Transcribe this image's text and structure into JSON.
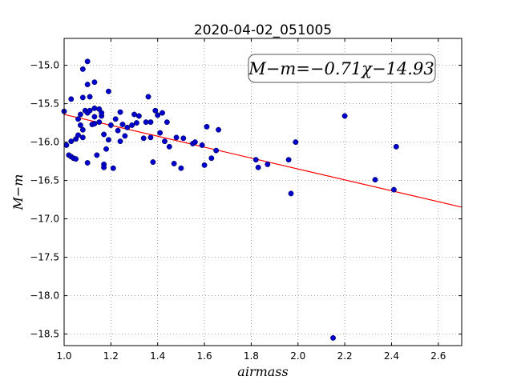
{
  "chart_data": {
    "type": "scatter",
    "title": "2020-04-02_051005",
    "xlabel": "airmass",
    "ylabel": "M−m",
    "xlim": [
      1.0,
      2.7
    ],
    "ylim": [
      -18.65,
      -14.65
    ],
    "x_ticks": [
      1.0,
      1.2,
      1.4,
      1.6,
      1.8,
      2.0,
      2.2,
      2.4,
      2.6
    ],
    "y_ticks": [
      -15.0,
      -15.5,
      -16.0,
      -16.5,
      -17.0,
      -17.5,
      -18.0,
      -18.5
    ],
    "x_tick_labels": [
      "1.0",
      "1.2",
      "1.4",
      "1.6",
      "1.8",
      "2.0",
      "2.2",
      "2.4",
      "2.6"
    ],
    "y_tick_labels": [
      "−15.0",
      "−15.5",
      "−16.0",
      "−16.5",
      "−17.0",
      "−17.5",
      "−18.0",
      "−18.5"
    ],
    "grid": true,
    "annotation": "M−m=−0.71χ−14.93",
    "colors": {
      "points": "#0000cc",
      "fit_line": "#ff0000",
      "grid": "#888888"
    },
    "fit": {
      "slope": -0.71,
      "intercept": -14.93
    },
    "series": [
      {
        "points": [
          [
            1.0,
            -15.6
          ],
          [
            1.01,
            -16.04
          ],
          [
            1.02,
            -16.17
          ],
          [
            1.03,
            -16.19
          ],
          [
            1.03,
            -15.99
          ],
          [
            1.03,
            -15.44
          ],
          [
            1.04,
            -16.21
          ],
          [
            1.05,
            -16.22
          ],
          [
            1.05,
            -15.96
          ],
          [
            1.06,
            -15.7
          ],
          [
            1.06,
            -15.91
          ],
          [
            1.07,
            -15.78
          ],
          [
            1.07,
            -15.64
          ],
          [
            1.08,
            -15.05
          ],
          [
            1.08,
            -15.42
          ],
          [
            1.08,
            -15.84
          ],
          [
            1.08,
            -15.94
          ],
          [
            1.09,
            -15.59
          ],
          [
            1.1,
            -14.95
          ],
          [
            1.1,
            -15.25
          ],
          [
            1.1,
            -15.62
          ],
          [
            1.1,
            -16.27
          ],
          [
            1.11,
            -15.41
          ],
          [
            1.11,
            -15.59
          ],
          [
            1.12,
            -15.77
          ],
          [
            1.13,
            -15.22
          ],
          [
            1.13,
            -15.56
          ],
          [
            1.13,
            -15.67
          ],
          [
            1.13,
            -15.76
          ],
          [
            1.14,
            -16.17
          ],
          [
            1.15,
            -15.74
          ],
          [
            1.15,
            -15.57
          ],
          [
            1.16,
            -15.66
          ],
          [
            1.16,
            -15.62
          ],
          [
            1.17,
            -16.29
          ],
          [
            1.17,
            -16.33
          ],
          [
            1.17,
            -15.9
          ],
          [
            1.18,
            -16.09
          ],
          [
            1.19,
            -15.34
          ],
          [
            1.19,
            -15.97
          ],
          [
            1.2,
            -15.78
          ],
          [
            1.21,
            -16.34
          ],
          [
            1.22,
            -15.7
          ],
          [
            1.23,
            -15.85
          ],
          [
            1.24,
            -15.61
          ],
          [
            1.24,
            -15.99
          ],
          [
            1.25,
            -15.77
          ],
          [
            1.26,
            -15.92
          ],
          [
            1.27,
            -15.81
          ],
          [
            1.29,
            -15.78
          ],
          [
            1.3,
            -15.64
          ],
          [
            1.31,
            -15.75
          ],
          [
            1.32,
            -15.66
          ],
          [
            1.34,
            -15.95
          ],
          [
            1.35,
            -15.74
          ],
          [
            1.36,
            -15.41
          ],
          [
            1.37,
            -15.94
          ],
          [
            1.37,
            -15.74
          ],
          [
            1.38,
            -16.26
          ],
          [
            1.39,
            -15.59
          ],
          [
            1.4,
            -15.65
          ],
          [
            1.41,
            -15.88
          ],
          [
            1.42,
            -15.62
          ],
          [
            1.43,
            -15.99
          ],
          [
            1.44,
            -15.74
          ],
          [
            1.45,
            -16.06
          ],
          [
            1.47,
            -16.28
          ],
          [
            1.48,
            -15.94
          ],
          [
            1.5,
            -16.34
          ],
          [
            1.51,
            -15.95
          ],
          [
            1.55,
            -16.02
          ],
          [
            1.56,
            -16.0
          ],
          [
            1.59,
            -16.04
          ],
          [
            1.6,
            -16.3
          ],
          [
            1.61,
            -15.8
          ],
          [
            1.63,
            -16.21
          ],
          [
            1.65,
            -16.11
          ],
          [
            1.66,
            -15.84
          ],
          [
            1.82,
            -16.23
          ],
          [
            1.83,
            -16.33
          ],
          [
            1.87,
            -16.29
          ],
          [
            1.96,
            -16.23
          ],
          [
            1.97,
            -16.67
          ],
          [
            1.99,
            -16.0
          ],
          [
            2.15,
            -18.55
          ],
          [
            2.2,
            -15.66
          ],
          [
            2.33,
            -16.49
          ],
          [
            2.41,
            -16.62
          ],
          [
            2.42,
            -16.06
          ]
        ]
      }
    ]
  }
}
